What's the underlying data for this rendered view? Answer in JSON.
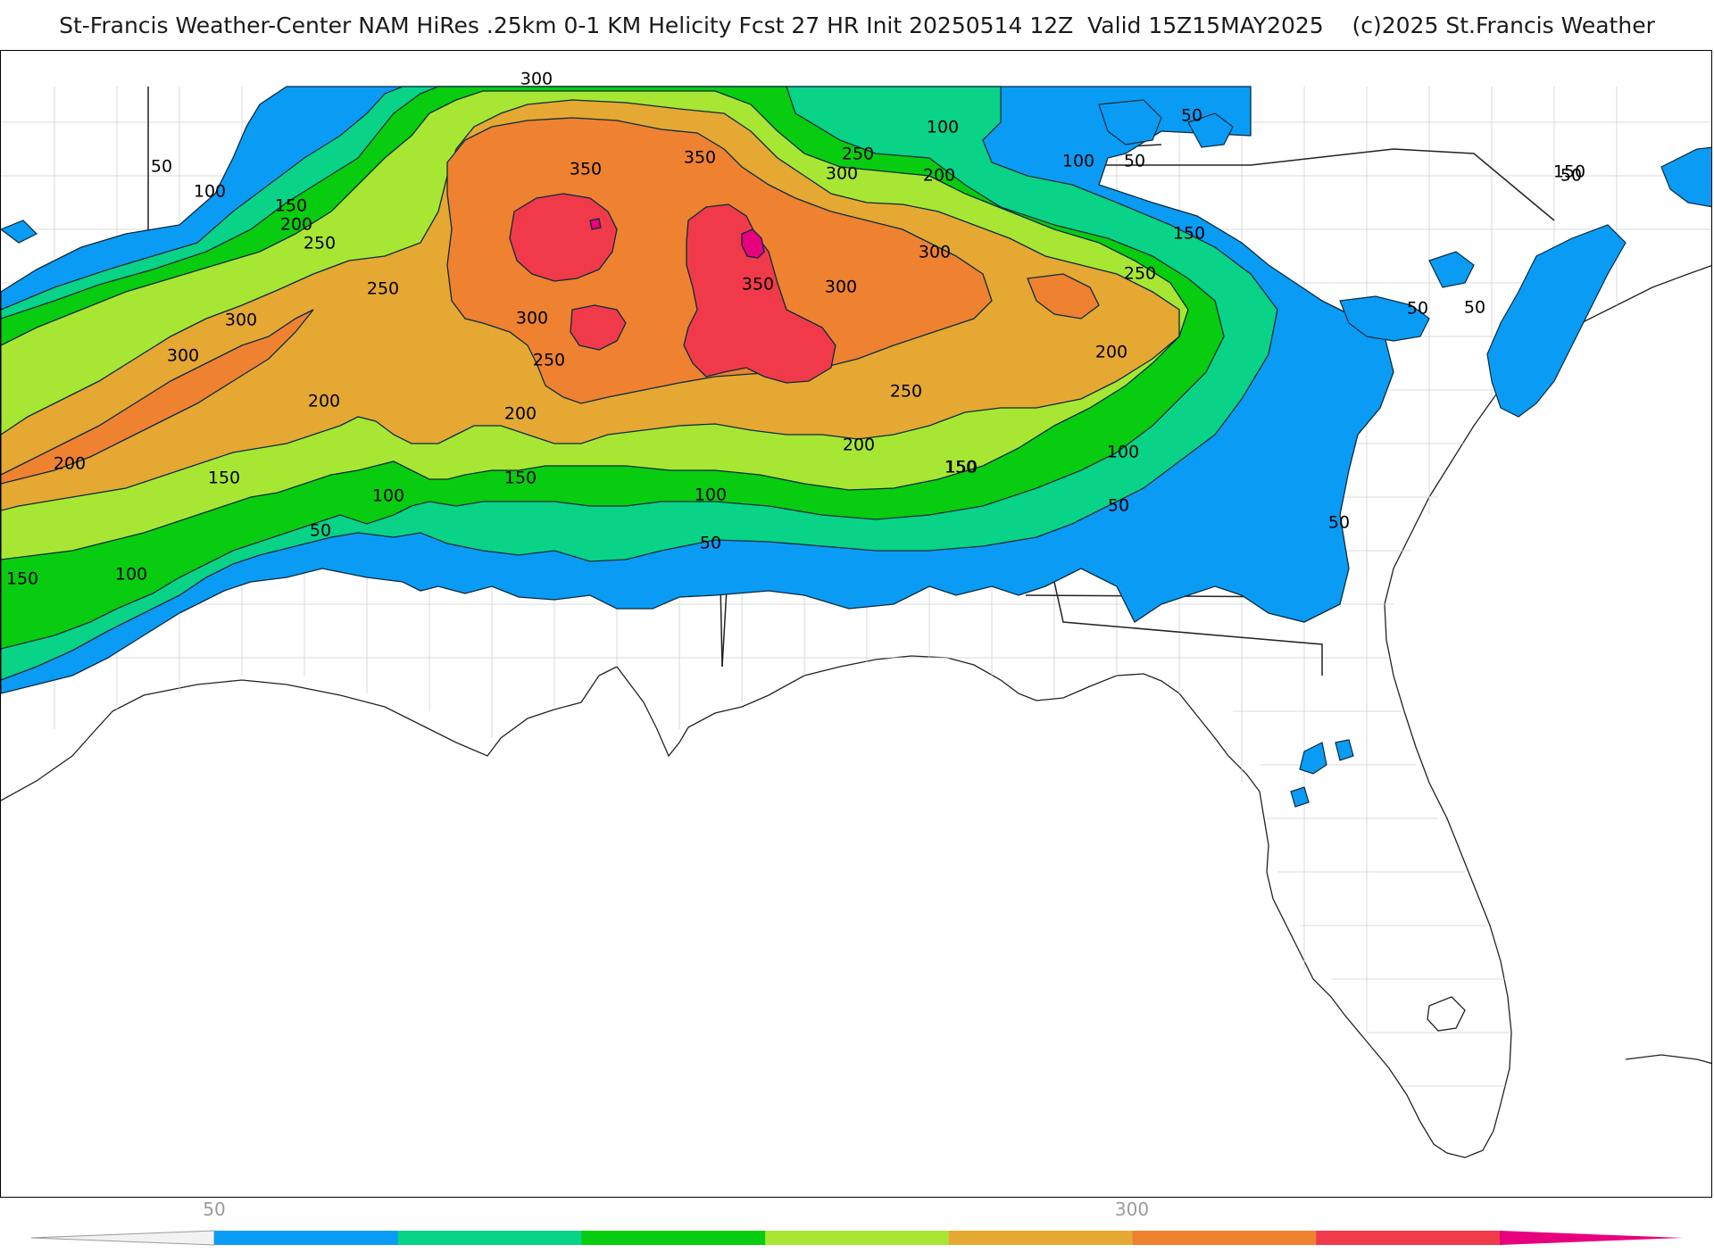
{
  "header": {
    "title": "St-Francis Weather-Center NAM HiRes .25km 0-1 KM Helicity Fcst 27 HR Init 20250514 12Z  Valid 15Z15MAY2025    (c)2025 St.Francis Weather"
  },
  "map": {
    "field": "0-1 KM Helicity",
    "contour_labels": [
      {
        "text": "50"
      },
      {
        "text": "100"
      },
      {
        "text": "150"
      },
      {
        "text": "200"
      },
      {
        "text": "250"
      },
      {
        "text": "300"
      },
      {
        "text": "300"
      },
      {
        "text": "250"
      },
      {
        "text": "200"
      },
      {
        "text": "150"
      },
      {
        "text": "100"
      },
      {
        "text": "50"
      },
      {
        "text": "350"
      },
      {
        "text": "350"
      },
      {
        "text": "300"
      },
      {
        "text": "250"
      },
      {
        "text": "150"
      },
      {
        "text": "200"
      },
      {
        "text": "300"
      },
      {
        "text": "350"
      },
      {
        "text": "300"
      },
      {
        "text": "300"
      },
      {
        "text": "250"
      },
      {
        "text": "250"
      },
      {
        "text": "200"
      },
      {
        "text": "150"
      },
      {
        "text": "100"
      },
      {
        "text": "50"
      },
      {
        "text": "100"
      },
      {
        "text": "50"
      },
      {
        "text": "50"
      },
      {
        "text": "50"
      },
      {
        "text": "50"
      },
      {
        "text": "50"
      },
      {
        "text": "150"
      },
      {
        "text": "100"
      },
      {
        "text": "200"
      },
      {
        "text": "300"
      },
      {
        "text": "250"
      },
      {
        "text": "200"
      },
      {
        "text": "150"
      },
      {
        "text": "100"
      },
      {
        "text": "50"
      },
      {
        "text": "200"
      },
      {
        "text": "150"
      },
      {
        "text": "100"
      },
      {
        "text": "50"
      },
      {
        "text": "150"
      }
    ]
  },
  "colorbar": {
    "labels": [
      {
        "text": "50"
      },
      {
        "text": "300"
      }
    ],
    "segments": [
      {
        "color": "#0a9cf5"
      },
      {
        "color": "#08d387"
      },
      {
        "color": "#08cc10"
      },
      {
        "color": "#a7e733"
      },
      {
        "color": "#e5a832"
      },
      {
        "color": "#ee8230"
      },
      {
        "color": "#f03a4a"
      },
      {
        "color": "#e6007e"
      }
    ]
  }
}
